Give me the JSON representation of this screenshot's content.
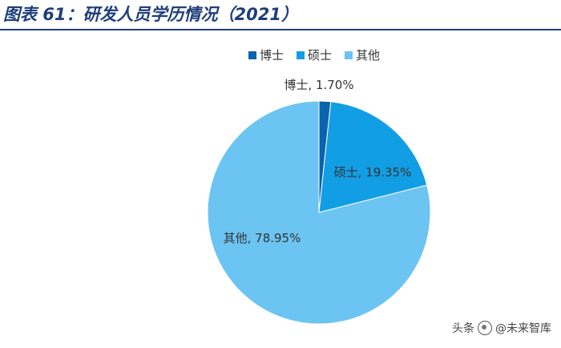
{
  "figure": {
    "title": "图表 61：研发人员学历情况（2021）"
  },
  "chart_data": {
    "type": "pie",
    "title": "",
    "legend_position": "top",
    "slices": [
      {
        "name": "博士",
        "value": 1.7,
        "label": "博士, 1.70%",
        "color": "#0a63ad"
      },
      {
        "name": "硕士",
        "value": 19.35,
        "label": "硕士, 19.35%",
        "color": "#129ee5"
      },
      {
        "name": "其他",
        "value": 78.95,
        "label": "其他, 78.95%",
        "color": "#6cc4f2"
      }
    ]
  },
  "watermark": {
    "prefix": "头条",
    "handle": "@未来智库"
  }
}
